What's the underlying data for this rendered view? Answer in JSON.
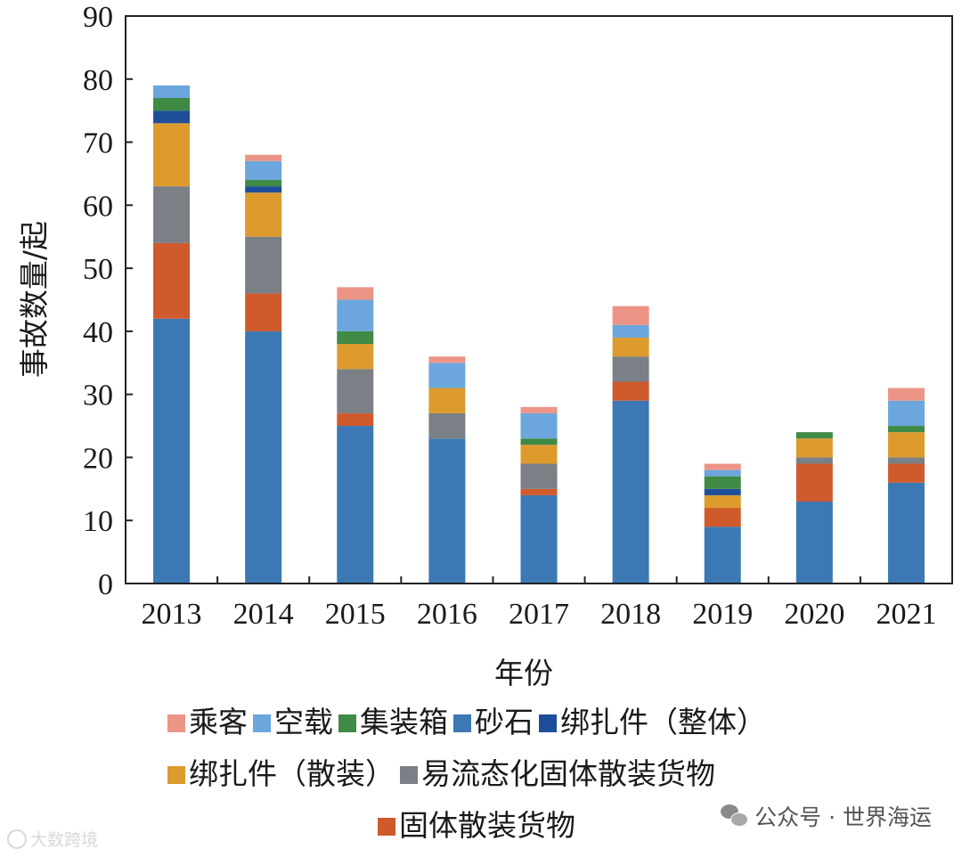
{
  "chart_data": {
    "type": "bar",
    "stacked": true,
    "ylabel": "事故数量/起",
    "xlabel": "年份",
    "ylim": [
      0,
      90
    ],
    "yticks": [
      0,
      10,
      20,
      30,
      40,
      50,
      60,
      70,
      80,
      90
    ],
    "categories": [
      "2013",
      "2014",
      "2015",
      "2016",
      "2017",
      "2018",
      "2019",
      "2020",
      "2021"
    ],
    "series": [
      {
        "name": "砂石",
        "color": "#3b78b4",
        "values": [
          42,
          40,
          25,
          23,
          14,
          29,
          9,
          13,
          16
        ]
      },
      {
        "name": "固体散装货物",
        "color": "#cf5a2c",
        "values": [
          12,
          6,
          2,
          0,
          1,
          3,
          3,
          6,
          3
        ]
      },
      {
        "name": "易流态化固体散装货物",
        "color": "#7b7f86",
        "values": [
          9,
          9,
          7,
          4,
          4,
          4,
          0,
          1,
          1
        ]
      },
      {
        "name": "绑扎件（散装）",
        "color": "#dd9b2e",
        "values": [
          10,
          7,
          4,
          4,
          3,
          3,
          2,
          3,
          4
        ]
      },
      {
        "name": "绑扎件（整体）",
        "color": "#1e4e9a",
        "values": [
          2,
          1,
          0,
          0,
          0,
          0,
          1,
          0,
          0
        ]
      },
      {
        "name": "集装箱",
        "color": "#3f8a44",
        "values": [
          2,
          1,
          2,
          0,
          1,
          0,
          2,
          1,
          1
        ]
      },
      {
        "name": "空载",
        "color": "#6ba6dc",
        "values": [
          2,
          3,
          5,
          4,
          4,
          2,
          1,
          0,
          4
        ]
      },
      {
        "name": "乘客",
        "color": "#ec9587",
        "values": [
          0,
          1,
          2,
          1,
          1,
          3,
          1,
          0,
          2
        ]
      }
    ],
    "legend": {
      "placement": "bottom",
      "rows": [
        [
          "乘客",
          "空载",
          "集装箱",
          "砂石",
          "绑扎件（整体）"
        ],
        [
          "绑扎件（散装）",
          "易流态化固体散装货物"
        ],
        [
          "固体散装货物"
        ]
      ]
    },
    "grid": false
  },
  "watermarks": {
    "right_text": "公众号 · 世界海运",
    "left_text": "大数跨境"
  }
}
